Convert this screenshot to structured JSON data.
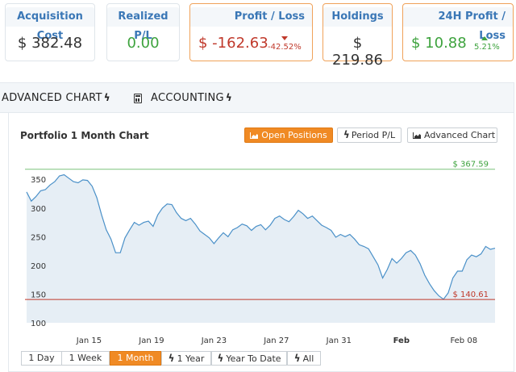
{
  "stats": {
    "acquisition_cost": {
      "title": "Acquisition Cost",
      "value": "$ 382.48"
    },
    "realized_pl": {
      "title": "Realized P/L",
      "value": "0.00"
    },
    "profit_loss": {
      "title": "Profit / Loss",
      "value": "$ -162.63",
      "change": "-42.52%"
    },
    "holdings": {
      "title": "Holdings",
      "value": "$ 219.86"
    },
    "profit_24h": {
      "title": "24H Profit / Loss",
      "value": "$ 10.88",
      "change": "5.21%"
    }
  },
  "tabs": {
    "advanced_chart": "ADVANCED CHART",
    "accounting": "ACCOUNTING"
  },
  "panel": {
    "title": "Portfolio 1 Month Chart",
    "buttons": {
      "open_positions": "Open Positions",
      "period_pl": "Period P/L",
      "advanced_chart": "Advanced Chart"
    }
  },
  "ranges": {
    "one_day": "1 Day",
    "one_week": "1 Week",
    "one_month": "1 Month",
    "one_year": "1 Year",
    "year_to_date": "Year To Date",
    "all": "All"
  },
  "colors": {
    "accent": "#f08a24",
    "title_blue": "#3a77b6",
    "positive": "#3ea33e",
    "negative": "#c0392b",
    "line": "#4a90c8",
    "area": "#e6eef5",
    "high_line": "#7cc47c",
    "low_line": "#c0392b"
  },
  "chart_data": {
    "type": "area",
    "title": "",
    "xlabel": "",
    "ylabel": "",
    "ylim": [
      100,
      370
    ],
    "yticks": [
      100,
      150,
      200,
      250,
      300,
      350
    ],
    "x_tick_labels": [
      "Jan 15",
      "Jan 19",
      "Jan 23",
      "Jan 27",
      "Jan 31",
      "Feb",
      "Feb 08"
    ],
    "x_tick_days": [
      4,
      8,
      12,
      16,
      20,
      24,
      28
    ],
    "x_tick_bold": [
      false,
      false,
      false,
      false,
      false,
      true,
      false
    ],
    "annotations": {
      "high": "$ 367.59",
      "low": "$ 140.61"
    },
    "high_value": 367.59,
    "low_value": 140.61,
    "series": [
      {
        "x": [
          0.0,
          0.3,
          0.6,
          0.9,
          1.2,
          1.5,
          1.8,
          2.1,
          2.4,
          2.7,
          3.0,
          3.3,
          3.6,
          3.9,
          4.2,
          4.5,
          4.8,
          5.1,
          5.4,
          5.7,
          6.0,
          6.3,
          6.6,
          6.9,
          7.2,
          7.5,
          7.8,
          8.1,
          8.4,
          8.7,
          9.0,
          9.3,
          9.6,
          9.9,
          10.2,
          10.5,
          10.8,
          11.1,
          11.4,
          11.7,
          12.0,
          12.3,
          12.6,
          12.9,
          13.2,
          13.5,
          13.8,
          14.1,
          14.4,
          14.7,
          15.0,
          15.3,
          15.6,
          15.9,
          16.2,
          16.5,
          16.8,
          17.1,
          17.4,
          17.7,
          18.0,
          18.3,
          18.6,
          18.9,
          19.2,
          19.5,
          19.8,
          20.1,
          20.4,
          20.7,
          21.0,
          21.3,
          21.6,
          21.9,
          22.2,
          22.5,
          22.8,
          23.1,
          23.4,
          23.7,
          24.0,
          24.3,
          24.6,
          24.9,
          25.2,
          25.5,
          25.8,
          26.1,
          26.4,
          26.7,
          27.0,
          27.3,
          27.6,
          27.9,
          28.2,
          28.5,
          28.8,
          29.1,
          29.4,
          29.7,
          30.0
        ],
        "values": [
          328,
          312,
          320,
          330,
          332,
          340,
          346,
          356,
          358,
          352,
          346,
          344,
          349,
          348,
          338,
          318,
          288,
          262,
          246,
          222,
          222,
          248,
          262,
          275,
          270,
          275,
          277,
          268,
          288,
          300,
          307,
          306,
          292,
          282,
          278,
          282,
          272,
          260,
          254,
          248,
          238,
          248,
          257,
          250,
          262,
          266,
          272,
          269,
          261,
          268,
          271,
          262,
          270,
          282,
          286,
          280,
          276,
          285,
          296,
          290,
          282,
          286,
          278,
          270,
          266,
          261,
          249,
          254,
          250,
          254,
          246,
          236,
          233,
          229,
          215,
          201,
          178,
          193,
          212,
          204,
          212,
          222,
          226,
          218,
          203,
          183,
          168,
          156,
          147,
          141,
          152,
          178,
          190,
          190,
          210,
          218,
          215,
          220,
          233,
          228,
          230
        ]
      }
    ]
  }
}
